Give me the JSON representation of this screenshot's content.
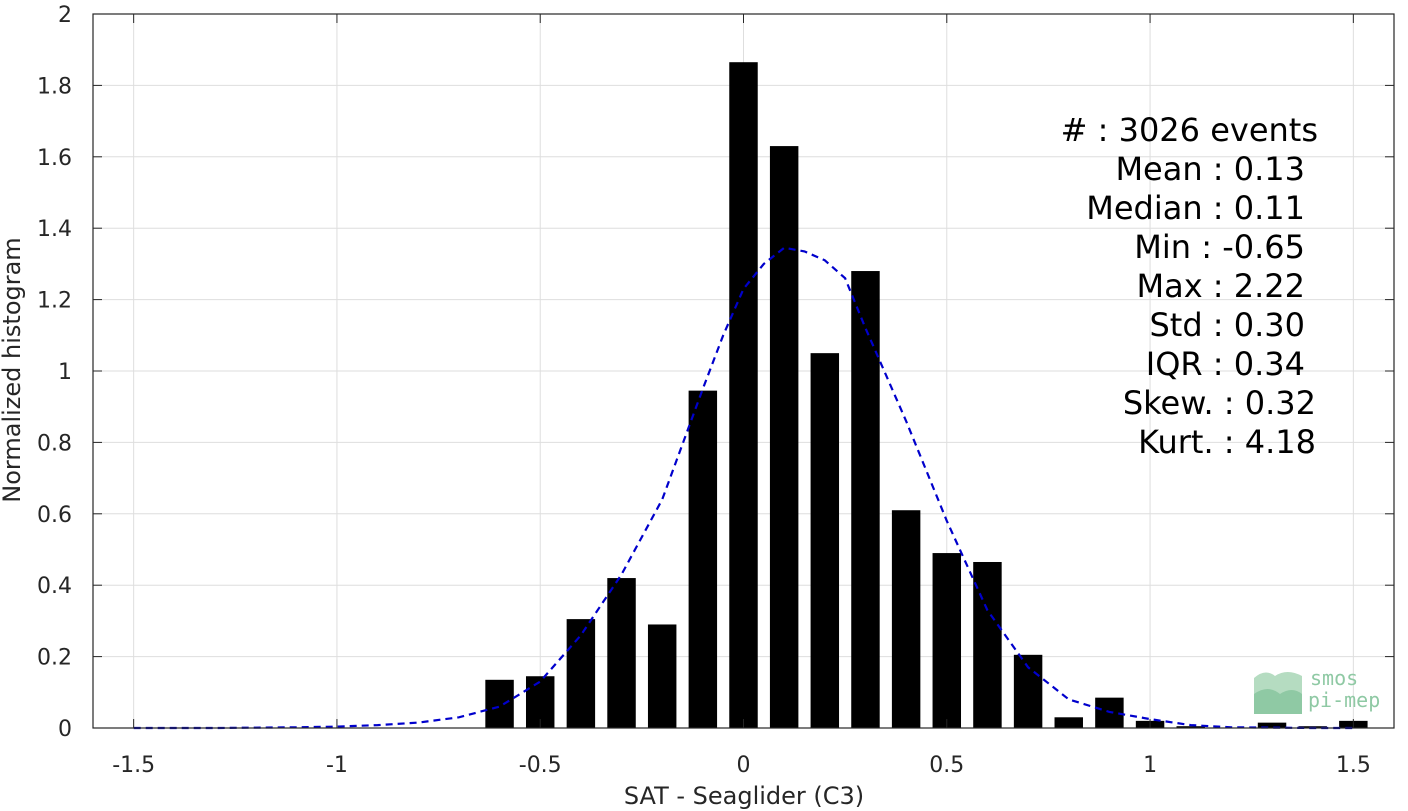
{
  "chart_data": {
    "type": "bar",
    "xlabel": "SAT - Seaglider (C3)",
    "ylabel": "Normalized histogram",
    "xlim": [
      -1.6,
      1.6
    ],
    "ylim": [
      0,
      2
    ],
    "xticks": [
      -1.5,
      -1,
      -0.5,
      0,
      0.5,
      1,
      1.5
    ],
    "xtick_labels": [
      "-1.5",
      "-1",
      "-0.5",
      "0",
      "0.5",
      "1",
      "1.5"
    ],
    "yticks": [
      0,
      0.2,
      0.4,
      0.6,
      0.8,
      1,
      1.2,
      1.4,
      1.6,
      1.8,
      2
    ],
    "ytick_labels": [
      "0",
      "0.2",
      "0.4",
      "0.6",
      "0.8",
      "1",
      "1.2",
      "1.4",
      "1.6",
      "1.8",
      "2"
    ],
    "grid": true,
    "bar_color": "#000000",
    "bar_width": 0.07,
    "bars": {
      "x": [
        -0.6,
        -0.5,
        -0.4,
        -0.3,
        -0.2,
        -0.1,
        0.0,
        0.1,
        0.2,
        0.3,
        0.4,
        0.5,
        0.6,
        0.7,
        0.8,
        0.9,
        1.0,
        1.1,
        1.2,
        1.3,
        1.4,
        1.5
      ],
      "values": [
        0.135,
        0.145,
        0.305,
        0.42,
        0.29,
        0.945,
        1.865,
        1.63,
        1.05,
        1.28,
        0.61,
        0.49,
        0.465,
        0.205,
        0.03,
        0.085,
        0.02,
        0.005,
        0.0,
        0.015,
        0.005,
        0.02
      ]
    },
    "fit_curve": {
      "color": "#0000cc",
      "style": "dashed",
      "x": [
        -1.5,
        -1.3,
        -1.1,
        -1.0,
        -0.9,
        -0.8,
        -0.7,
        -0.6,
        -0.5,
        -0.4,
        -0.3,
        -0.2,
        -0.1,
        -0.05,
        0.0,
        0.05,
        0.1,
        0.15,
        0.2,
        0.25,
        0.3,
        0.35,
        0.4,
        0.5,
        0.6,
        0.7,
        0.8,
        0.9,
        1.0,
        1.1,
        1.2,
        1.3,
        1.4,
        1.5
      ],
      "y": [
        0.0,
        0.0,
        0.002,
        0.004,
        0.008,
        0.015,
        0.03,
        0.06,
        0.13,
        0.26,
        0.43,
        0.64,
        0.95,
        1.1,
        1.23,
        1.3,
        1.345,
        1.335,
        1.31,
        1.26,
        1.12,
        0.99,
        0.86,
        0.58,
        0.33,
        0.17,
        0.08,
        0.045,
        0.025,
        0.008,
        0.002,
        0.001,
        0.0,
        0.0
      ]
    }
  },
  "stats": [
    {
      "label": "#  : 3026 events"
    },
    {
      "label": "Mean : 0.13"
    },
    {
      "label": "Median : 0.11"
    },
    {
      "label": "Min : -0.65"
    },
    {
      "label": "Max : 2.22"
    },
    {
      "label": "Std : 0.30"
    },
    {
      "label": "IQR : 0.34"
    },
    {
      "label": "Skew. : 0.32"
    },
    {
      "label": "Kurt. : 4.18"
    }
  ],
  "logo": {
    "line1": "smos",
    "line2": "pi-mep",
    "color": "#8fc9a4"
  }
}
